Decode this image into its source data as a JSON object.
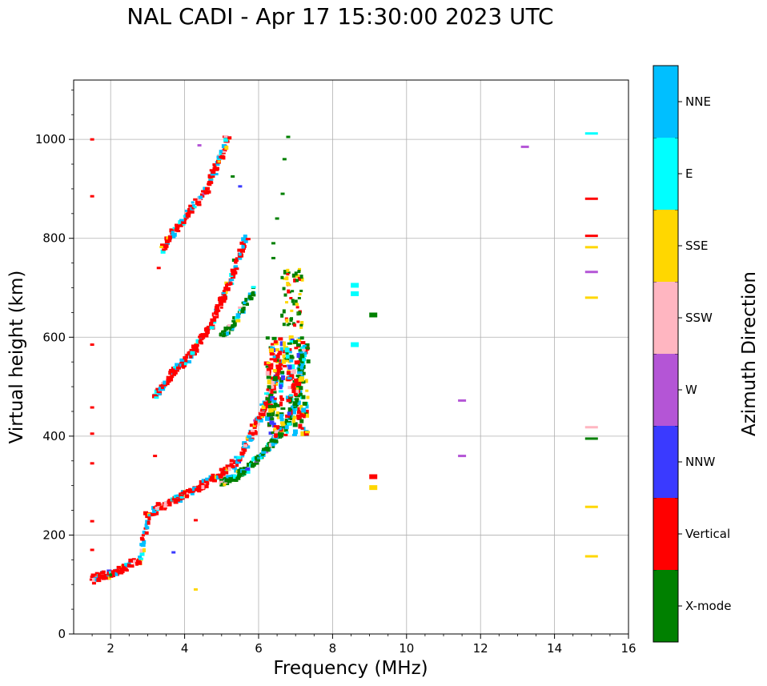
{
  "chart_data": {
    "type": "scatter",
    "title": "NAL CADI - Apr 17 15:30:00 2023 UTC",
    "xlabel": "Frequency (MHz)",
    "ylabel": "Virtual height (km)",
    "xlim": [
      1,
      16
    ],
    "ylim": [
      0,
      1120
    ],
    "xticks": [
      2,
      4,
      6,
      8,
      10,
      12,
      14,
      16
    ],
    "yticks": [
      0,
      200,
      400,
      600,
      800,
      1000
    ],
    "grid": true,
    "colorbar": {
      "label": "Azimuth Direction",
      "categories": [
        {
          "name": "X-mode",
          "color": "#008000"
        },
        {
          "name": "Vertical",
          "color": "#ff0000"
        },
        {
          "name": "NNW",
          "color": "#3a3aff"
        },
        {
          "name": "W",
          "color": "#b455d6"
        },
        {
          "name": "SSW",
          "color": "#ffb6c1"
        },
        {
          "name": "SSE",
          "color": "#ffd700"
        },
        {
          "name": "E",
          "color": "#00ffff"
        },
        {
          "name": "NNE",
          "color": "#00bfff"
        }
      ]
    },
    "traces": [
      {
        "name": "O-mode F-layer trace",
        "dominant": "Vertical",
        "points": [
          [
            1.5,
            110
          ],
          [
            1.8,
            118
          ],
          [
            2.1,
            122
          ],
          [
            2.4,
            135
          ],
          [
            2.8,
            150
          ],
          [
            3.0,
            240
          ],
          [
            3.3,
            255
          ],
          [
            3.6,
            265
          ],
          [
            3.9,
            278
          ],
          [
            4.2,
            288
          ],
          [
            4.5,
            300
          ],
          [
            4.8,
            315
          ],
          [
            5.1,
            330
          ],
          [
            5.4,
            350
          ],
          [
            5.7,
            385
          ],
          [
            5.9,
            420
          ],
          [
            6.1,
            450
          ],
          [
            6.3,
            480
          ],
          [
            6.5,
            520
          ],
          [
            6.6,
            560
          ]
        ]
      },
      {
        "name": "X-mode F-layer trace",
        "dominant": "X-mode",
        "points": [
          [
            5.0,
            305
          ],
          [
            5.3,
            315
          ],
          [
            5.6,
            330
          ],
          [
            5.9,
            350
          ],
          [
            6.2,
            370
          ],
          [
            6.4,
            390
          ],
          [
            6.6,
            410
          ],
          [
            6.8,
            430
          ],
          [
            7.0,
            460
          ],
          [
            7.1,
            500
          ],
          [
            7.15,
            540
          ],
          [
            7.2,
            580
          ]
        ]
      },
      {
        "name": "O-mode 2-hop trace",
        "dominant": "Vertical",
        "points": [
          [
            3.2,
            480
          ],
          [
            3.5,
            510
          ],
          [
            3.8,
            535
          ],
          [
            4.1,
            560
          ],
          [
            4.4,
            590
          ],
          [
            4.7,
            620
          ],
          [
            4.9,
            655
          ],
          [
            5.1,
            690
          ],
          [
            5.3,
            730
          ],
          [
            5.5,
            770
          ],
          [
            5.7,
            810
          ]
        ]
      },
      {
        "name": "X-mode 2-hop trace",
        "dominant": "X-mode",
        "points": [
          [
            5.0,
            600
          ],
          [
            5.3,
            625
          ],
          [
            5.6,
            660
          ],
          [
            5.9,
            700
          ]
        ]
      },
      {
        "name": "O-mode 3-hop trace",
        "dominant": "Vertical",
        "points": [
          [
            3.4,
            780
          ],
          [
            3.7,
            810
          ],
          [
            4.0,
            840
          ],
          [
            4.3,
            870
          ],
          [
            4.6,
            900
          ],
          [
            4.8,
            935
          ],
          [
            5.0,
            970
          ],
          [
            5.2,
            1010
          ]
        ]
      }
    ],
    "isolated_points": [
      {
        "x": 1.5,
        "y": 1000,
        "azimuth": "Vertical"
      },
      {
        "x": 1.5,
        "y": 885,
        "azimuth": "Vertical"
      },
      {
        "x": 1.5,
        "y": 585,
        "azimuth": "Vertical"
      },
      {
        "x": 1.5,
        "y": 458,
        "azimuth": "Vertical"
      },
      {
        "x": 1.5,
        "y": 405,
        "azimuth": "Vertical"
      },
      {
        "x": 1.5,
        "y": 345,
        "azimuth": "Vertical"
      },
      {
        "x": 1.5,
        "y": 228,
        "azimuth": "Vertical"
      },
      {
        "x": 1.5,
        "y": 170,
        "azimuth": "Vertical"
      },
      {
        "x": 4.4,
        "y": 988,
        "azimuth": "W"
      },
      {
        "x": 5.3,
        "y": 925,
        "azimuth": "X-mode"
      },
      {
        "x": 5.5,
        "y": 905,
        "azimuth": "NNW"
      },
      {
        "x": 6.8,
        "y": 1005,
        "azimuth": "X-mode"
      },
      {
        "x": 6.7,
        "y": 960,
        "azimuth": "X-mode"
      },
      {
        "x": 6.65,
        "y": 890,
        "azimuth": "X-mode"
      },
      {
        "x": 6.5,
        "y": 840,
        "azimuth": "X-mode"
      },
      {
        "x": 6.4,
        "y": 790,
        "azimuth": "X-mode"
      },
      {
        "x": 6.4,
        "y": 760,
        "azimuth": "X-mode"
      },
      {
        "x": 8.6,
        "y": 705,
        "azimuth": "E"
      },
      {
        "x": 8.6,
        "y": 688,
        "azimuth": "E"
      },
      {
        "x": 8.6,
        "y": 585,
        "azimuth": "E"
      },
      {
        "x": 9.1,
        "y": 645,
        "azimuth": "X-mode"
      },
      {
        "x": 9.1,
        "y": 318,
        "azimuth": "Vertical"
      },
      {
        "x": 9.1,
        "y": 296,
        "azimuth": "SSE"
      },
      {
        "x": 11.5,
        "y": 360,
        "azimuth": "W"
      },
      {
        "x": 11.5,
        "y": 472,
        "azimuth": "W"
      },
      {
        "x": 13.2,
        "y": 985,
        "azimuth": "W"
      },
      {
        "x": 15.0,
        "y": 1012,
        "azimuth": "E"
      },
      {
        "x": 15.0,
        "y": 880,
        "azimuth": "Vertical"
      },
      {
        "x": 15.0,
        "y": 805,
        "azimuth": "Vertical"
      },
      {
        "x": 15.0,
        "y": 782,
        "azimuth": "SSE"
      },
      {
        "x": 15.0,
        "y": 732,
        "azimuth": "W"
      },
      {
        "x": 15.0,
        "y": 680,
        "azimuth": "SSE"
      },
      {
        "x": 15.0,
        "y": 418,
        "azimuth": "SSW"
      },
      {
        "x": 15.0,
        "y": 395,
        "azimuth": "X-mode"
      },
      {
        "x": 15.0,
        "y": 257,
        "azimuth": "SSE"
      },
      {
        "x": 15.0,
        "y": 157,
        "azimuth": "SSE"
      },
      {
        "x": 4.3,
        "y": 90,
        "azimuth": "SSE"
      },
      {
        "x": 4.3,
        "y": 230,
        "azimuth": "Vertical"
      },
      {
        "x": 3.3,
        "y": 740,
        "azimuth": "Vertical"
      },
      {
        "x": 3.2,
        "y": 360,
        "azimuth": "Vertical"
      },
      {
        "x": 3.7,
        "y": 165,
        "azimuth": "NNW"
      }
    ]
  }
}
